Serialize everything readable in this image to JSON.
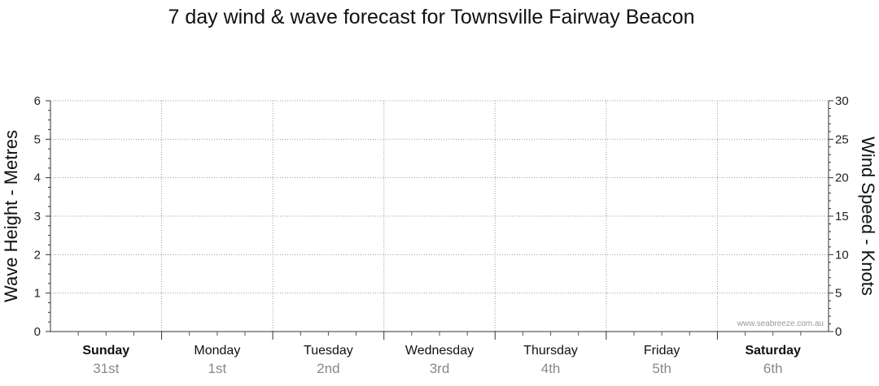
{
  "chart_data": {
    "type": "line",
    "title": "7 day wind & wave forecast for Townsville Fairway Beacon",
    "y_left": {
      "label": "Wave Height - Metres",
      "range": [
        0,
        6
      ],
      "ticks": [
        "0",
        "1",
        "2",
        "3",
        "4",
        "5",
        "6"
      ]
    },
    "y_right": {
      "label": "Wind Speed - Knots",
      "range": [
        0,
        30
      ],
      "ticks": [
        "0",
        "5",
        "10",
        "15",
        "20",
        "25",
        "30"
      ]
    },
    "days": [
      {
        "day": "Sunday",
        "date": "31st",
        "bold": true
      },
      {
        "day": "Monday",
        "date": "1st",
        "bold": false
      },
      {
        "day": "Tuesday",
        "date": "2nd",
        "bold": false
      },
      {
        "day": "Wednesday",
        "date": "3rd",
        "bold": false
      },
      {
        "day": "Thursday",
        "date": "4th",
        "bold": false
      },
      {
        "day": "Friday",
        "date": "5th",
        "bold": false
      },
      {
        "day": "Saturday",
        "date": "6th",
        "bold": true
      }
    ],
    "series": [],
    "grid": true,
    "watermark": "www.seabreeze.com.au"
  }
}
